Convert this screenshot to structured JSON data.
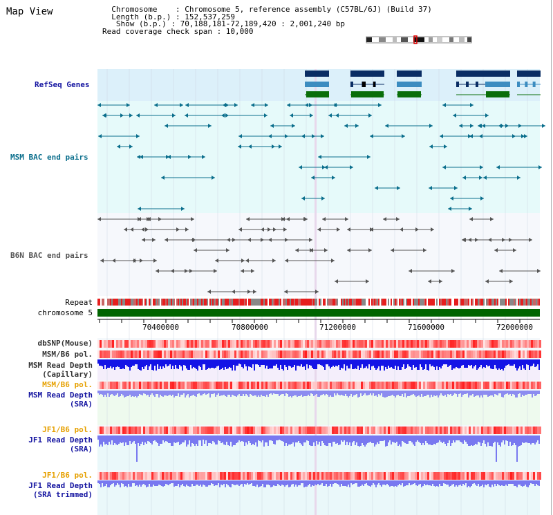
{
  "view_title": "Map View",
  "info": {
    "line1": "  Chromosome    : Chromosome 5, reference assembly (C57BL/6J) (Build 37)",
    "line2": "  Length (b.p.) : 152,537,259",
    "line3": "   Show (b.p.) : 70,188,181-72,189,420 : 2,001,240 bp",
    "line4": "Read coverage check span : 10,000"
  },
  "tracks": {
    "refseq": "RefSeq Genes",
    "msm_bac": "MSM BAC end pairs",
    "b6n_bac": "B6N BAC end pairs",
    "repeat": "Repeat",
    "chromosome": "chromosome 5",
    "dbsnp": "dbSNP(Mouse)",
    "msm_pol1": "MSM/B6 pol.",
    "msm_depth_cap_1": "MSM Read Depth",
    "msm_depth_cap_2": "(Capillary)",
    "msm_pol2": "MSM/B6 pol.",
    "msm_depth_sra_1": "MSM Read Depth",
    "msm_depth_sra_2": "(SRA)",
    "jf1_pol1": "JF1/B6 pol.",
    "jf1_depth_sra_1": "JF1 Read Depth",
    "jf1_depth_sra_2": "(SRA)",
    "jf1_pol2": "JF1/B6 pol.",
    "jf1_depth_trim_1": "JF1 Read Depth",
    "jf1_depth_trim_2": "(SRA trimmed)"
  },
  "axis": {
    "ticks": [
      "70400000",
      "70800000",
      "71200000",
      "71600000",
      "72000000"
    ]
  },
  "colors": {
    "refseq_bg": "#dcf0fa",
    "msm_bac_bg": "#e6fafa",
    "b6n_bg": "#f6f8fc",
    "grid": "#c8d0e0",
    "msm_feature": "#0a6e8c",
    "b6n_feature": "#555555",
    "gene_dark": "#0a2d64",
    "gene_mid": "#3c8cc0",
    "gene_green": "#0a6e0a",
    "depth_blue": "#1414e6",
    "depth_light": "#7878f0",
    "label_blue": "#1414a0",
    "label_orange": "#e6a000",
    "label_dark": "#333333"
  }
}
